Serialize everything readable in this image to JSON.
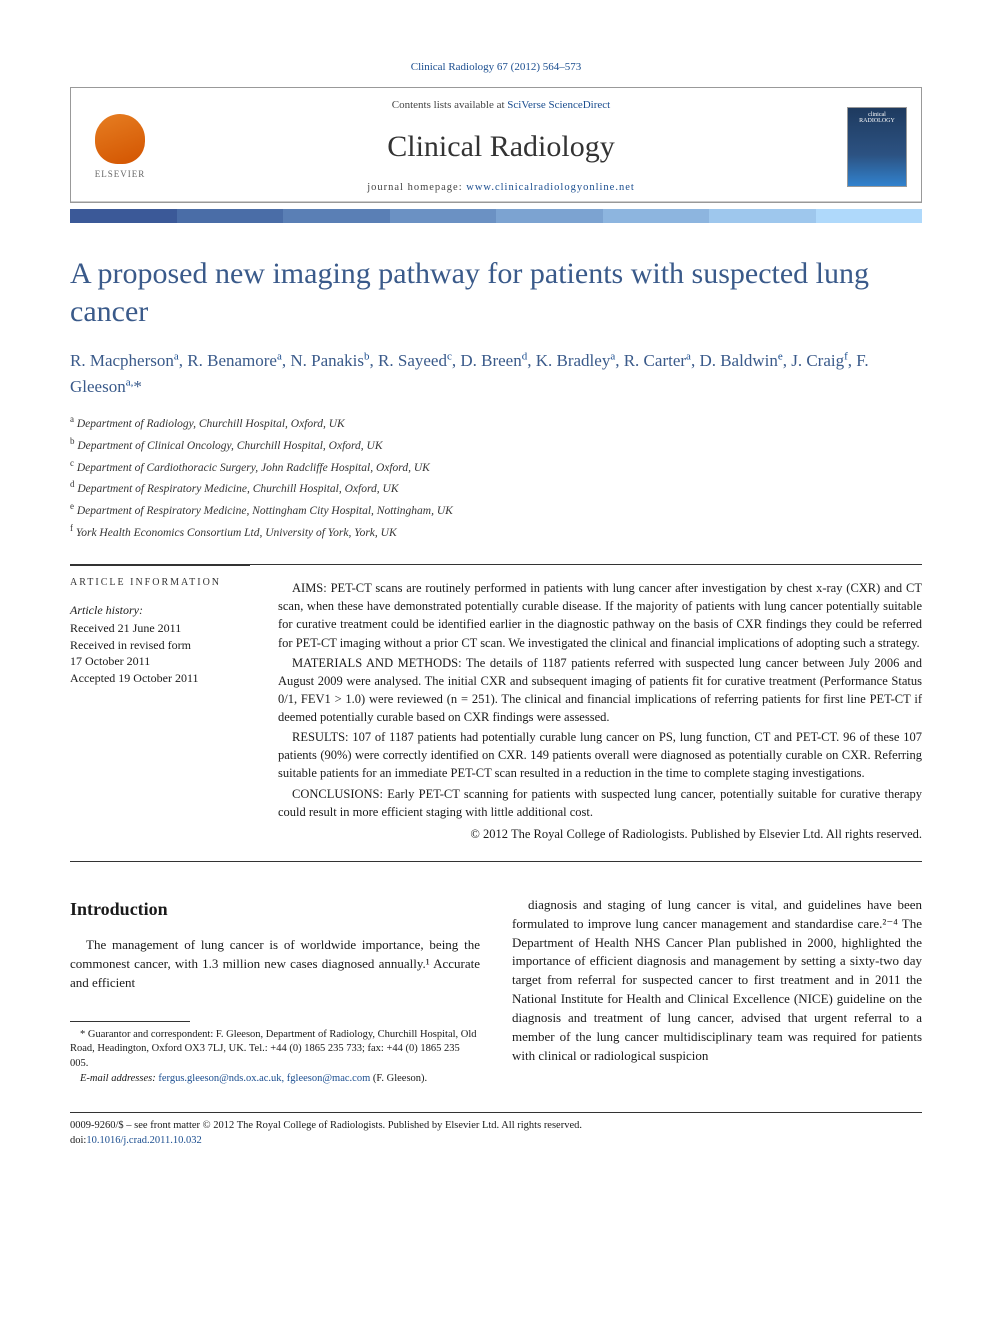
{
  "journal_ref": "Clinical Radiology 67 (2012) 564–573",
  "header": {
    "contents_prefix": "Contents lists available at ",
    "contents_link": "SciVerse ScienceDirect",
    "journal_name": "Clinical Radiology",
    "homepage_prefix": "journal homepage: ",
    "homepage_url": "www.clinicalradiologyonline.net",
    "elsevier_label": "ELSEVIER",
    "cover_label": "clinical RADIOLOGY"
  },
  "color_strip": [
    "#3b5998",
    "#4a6da7",
    "#5a7fb5",
    "#6b91c3",
    "#7ca3d1",
    "#8db5df",
    "#9ec7ed",
    "#afd9fb"
  ],
  "title": "A proposed new imaging pathway for patients with suspected lung cancer",
  "authors_html": "R. Macpherson<sup>a</sup>, R. Benamore<sup>a</sup>, N. Panakis<sup>b</sup>, R. Sayeed<sup>c</sup>, D. Breen<sup>d</sup>, K. Bradley<sup>a</sup>, R. Carter<sup>a</sup>, D. Baldwin<sup>e</sup>, J. Craig<sup>f</sup>, F. Gleeson<sup>a,</sup>*",
  "affiliations": [
    {
      "sup": "a",
      "text": "Department of Radiology, Churchill Hospital, Oxford, UK"
    },
    {
      "sup": "b",
      "text": "Department of Clinical Oncology, Churchill Hospital, Oxford, UK"
    },
    {
      "sup": "c",
      "text": "Department of Cardiothoracic Surgery, John Radcliffe Hospital, Oxford, UK"
    },
    {
      "sup": "d",
      "text": "Department of Respiratory Medicine, Churchill Hospital, Oxford, UK"
    },
    {
      "sup": "e",
      "text": "Department of Respiratory Medicine, Nottingham City Hospital, Nottingham, UK"
    },
    {
      "sup": "f",
      "text": "York Health Economics Consortium Ltd, University of York, York, UK"
    }
  ],
  "article_info": {
    "heading": "ARTICLE INFORMATION",
    "history_label": "Article history:",
    "lines": [
      "Received 21 June 2011",
      "Received in revised form",
      "17 October 2011",
      "Accepted 19 October 2011"
    ]
  },
  "abstract": {
    "aims": "AIMS: PET-CT scans are routinely performed in patients with lung cancer after investigation by chest x-ray (CXR) and CT scan, when these have demonstrated potentially curable disease. If the majority of patients with lung cancer potentially suitable for curative treatment could be identified earlier in the diagnostic pathway on the basis of CXR findings they could be referred for PET-CT imaging without a prior CT scan. We investigated the clinical and financial implications of adopting such a strategy.",
    "materials": "MATERIALS AND METHODS: The details of 1187 patients referred with suspected lung cancer between July 2006 and August 2009 were analysed. The initial CXR and subsequent imaging of patients fit for curative treatment (Performance Status 0/1, FEV1 > 1.0) were reviewed (n = 251). The clinical and financial implications of referring patients for first line PET-CT if deemed potentially curable based on CXR findings were assessed.",
    "results": "RESULTS: 107 of 1187 patients had potentially curable lung cancer on PS, lung function, CT and PET-CT. 96 of these 107 patients (90%) were correctly identified on CXR. 149 patients overall were diagnosed as potentially curable on CXR. Referring suitable patients for an immediate PET-CT scan resulted in a reduction in the time to complete staging investigations.",
    "conclusions": "CONCLUSIONS: Early PET-CT scanning for patients with suspected lung cancer, potentially suitable for curative therapy could result in more efficient staging with little additional cost.",
    "copyright": "© 2012 The Royal College of Radiologists. Published by Elsevier Ltd. All rights reserved."
  },
  "body": {
    "intro_heading": "Introduction",
    "col1_p1": "The management of lung cancer is of worldwide importance, being the commonest cancer, with 1.3 million new cases diagnosed annually.¹ Accurate and efficient",
    "col2_p1": "diagnosis and staging of lung cancer is vital, and guidelines have been formulated to improve lung cancer management and standardise care.²⁻⁴ The Department of Health NHS Cancer Plan published in 2000, highlighted the importance of efficient diagnosis and management by setting a sixty-two day target from referral for suspected cancer to first treatment and in 2011 the National Institute for Health and Clinical Excellence (NICE) guideline on the diagnosis and treatment of lung cancer, advised that urgent referral to a member of the lung cancer multidisciplinary team was required for patients with clinical or radiological suspicion"
  },
  "footnote": {
    "guarantor": "* Guarantor and correspondent: F. Gleeson, Department of Radiology, Churchill Hospital, Old Road, Headington, Oxford OX3 7LJ, UK. Tel.: +44 (0) 1865 235 733; fax: +44 (0) 1865 235 005.",
    "email_label": "E-mail addresses:",
    "emails": "fergus.gleeson@nds.ox.ac.uk, fgleeson@mac.com",
    "email_name": "(F. Gleeson)."
  },
  "footer": {
    "line": "0009-9260/$ – see front matter © 2012 The Royal College of Radiologists. Published by Elsevier Ltd. All rights reserved.",
    "doi_prefix": "doi:",
    "doi": "10.1016/j.crad.2011.10.032"
  }
}
